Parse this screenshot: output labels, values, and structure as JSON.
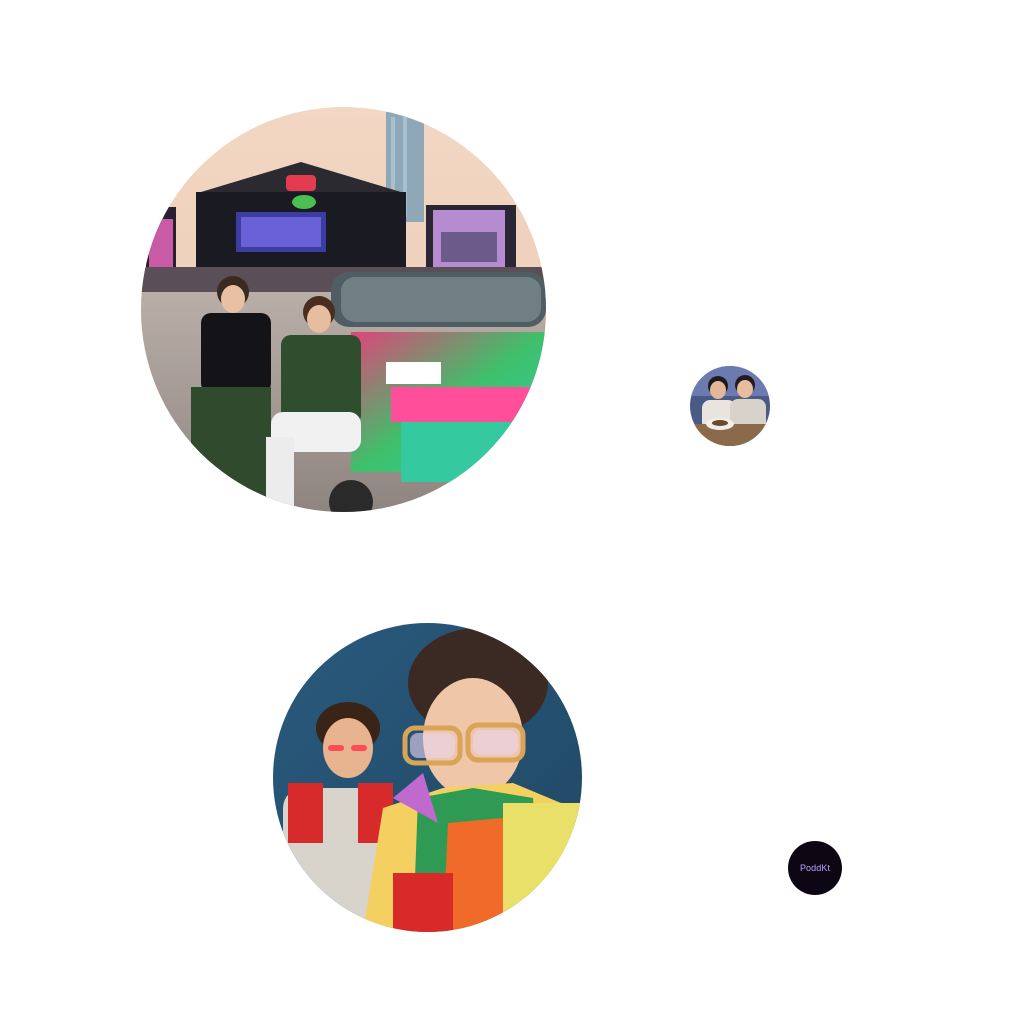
{
  "bubbles": [
    {
      "id": "festival-photo",
      "kind": "photo",
      "description_icon": "photo-icon"
    },
    {
      "id": "cafe-photo",
      "kind": "photo",
      "description_icon": "photo-icon"
    },
    {
      "id": "colorful-portrait",
      "kind": "photo",
      "description_icon": "photo-icon"
    },
    {
      "id": "name-bubble",
      "kind": "text",
      "label": "PoddKt"
    }
  ],
  "colors": {
    "background": "#ffffff",
    "name_bubble_bg": "#0d0714",
    "name_bubble_text": "#b8a6ff"
  }
}
